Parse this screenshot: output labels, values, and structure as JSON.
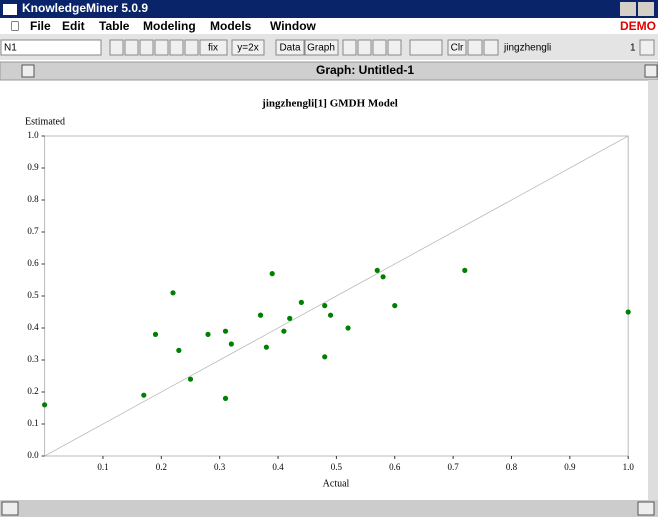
{
  "window": {
    "title": "KnowledgeMiner 5.0.9"
  },
  "menu": {
    "items": [
      "File",
      "Edit",
      "Table",
      "Modeling",
      "Models",
      "Window"
    ],
    "badge": "DEMO"
  },
  "toolbar": {
    "field": "N1",
    "buttons": [
      "fix",
      "y=2x",
      "Data",
      "Graph",
      "Clr"
    ],
    "dataset": "jingzhengli",
    "index": "1"
  },
  "graph_window": {
    "title": "Graph: Untitled-1"
  },
  "chart_data": {
    "type": "scatter",
    "title": "jingzhengli[1] GMDH Model",
    "xlabel": "Actual",
    "ylabel": "Estimated",
    "x": [
      0.0,
      0.17,
      0.19,
      0.22,
      0.23,
      0.25,
      0.28,
      0.31,
      0.31,
      0.32,
      0.37,
      0.37,
      0.38,
      0.39,
      0.41,
      0.42,
      0.44,
      0.48,
      0.48,
      0.49,
      0.52,
      0.57,
      0.58,
      0.6,
      0.72,
      1.0
    ],
    "values": [
      0.16,
      0.19,
      0.38,
      0.51,
      0.33,
      0.24,
      0.38,
      0.39,
      0.18,
      0.35,
      0.44,
      0.44,
      0.34,
      0.57,
      0.39,
      0.43,
      0.48,
      0.47,
      0.31,
      0.44,
      0.4,
      0.58,
      0.56,
      0.47,
      0.58,
      0.45
    ],
    "color": "#008000",
    "xlim": [
      0,
      1
    ],
    "ylim": [
      0,
      1
    ],
    "xticks": [
      0.1,
      0.2,
      0.3,
      0.4,
      0.5,
      0.6,
      0.7,
      0.8,
      0.9,
      {
        "value": 1,
        "label": "1.0"
      }
    ],
    "yticks": [
      {
        "value": 0,
        "label": "0.0"
      },
      0.1,
      0.2,
      0.3,
      0.4,
      0.5,
      0.6,
      0.7,
      0.8,
      0.9,
      {
        "value": 1,
        "label": "1.0"
      }
    ]
  }
}
